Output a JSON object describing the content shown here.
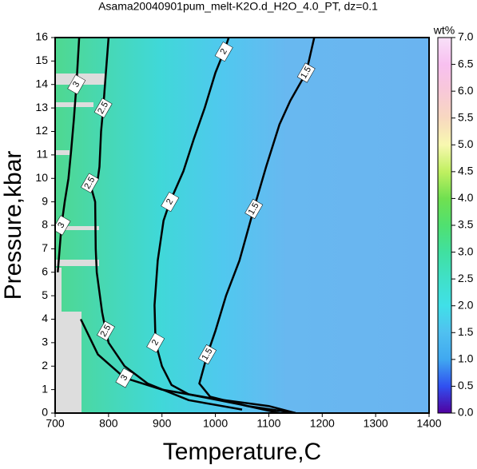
{
  "chart_data": {
    "type": "contour",
    "title": "Asama20040901pum_melt-K2O.d_H2O_4.0_PT, dz=0.1",
    "x_label": "Temperature,C",
    "y_label": "Pressure,kbar",
    "xlim": [
      700,
      1400
    ],
    "ylim": [
      0,
      16
    ],
    "xticks": [
      700,
      800,
      900,
      1000,
      1100,
      1200,
      1300,
      1400
    ],
    "yticks": [
      0,
      1,
      2,
      3,
      4,
      5,
      6,
      7,
      8,
      9,
      10,
      11,
      12,
      13,
      14,
      15,
      16
    ],
    "colorbar": {
      "label": "wt%",
      "zlim": [
        0,
        7
      ],
      "colormap": [
        "#5000a0",
        "#3050f0",
        "#40a8f0",
        "#50c0f0",
        "#40e0e8",
        "#40e0c8",
        "#40e0a0",
        "#50e070",
        "#70e050",
        "#c0f060",
        "#f8f8b0",
        "#f8d8c0",
        "#f8c8d8",
        "#f8c0f0",
        "#f8e0f8"
      ],
      "ticks": [
        {
          "value": 0,
          "label": "0.0"
        },
        {
          "value": 0.5,
          "label": "0.5"
        },
        {
          "value": 1,
          "label": "1.0"
        },
        {
          "value": 1.5,
          "label": "1.5"
        },
        {
          "value": 2,
          "label": "2.0"
        },
        {
          "value": 2.5,
          "label": "2.5"
        },
        {
          "value": 3,
          "label": "3.0"
        },
        {
          "value": 3.5,
          "label": "3.5"
        },
        {
          "value": 4,
          "label": "4.0"
        },
        {
          "value": 4.5,
          "label": "4.5"
        },
        {
          "value": 5,
          "label": "5.0"
        },
        {
          "value": 5.5,
          "label": "5.5"
        },
        {
          "value": 6,
          "label": "6.0"
        },
        {
          "value": 6.5,
          "label": "6.5"
        },
        {
          "value": 7,
          "label": "7.0"
        }
      ]
    },
    "contours": [
      {
        "level": 1.5,
        "color": "#000000",
        "x": [
          1185,
          1170,
          1140,
          1120,
          1095,
          1072,
          1045,
          1020,
          1000,
          985,
          970,
          990,
          1060,
          1150
        ],
        "y": [
          16,
          14.5,
          13.3,
          12.3,
          10.5,
          8.7,
          6.5,
          5,
          3.5,
          2.5,
          1.26,
          0.7,
          0.3,
          0
        ]
      },
      {
        "level": 2,
        "color": "#000000",
        "x": [
          1025,
          1016,
          1000,
          980,
          960,
          940,
          915,
          903,
          892,
          886,
          888,
          900,
          918,
          950,
          1050,
          1120
        ],
        "y": [
          16,
          15.4,
          14.5,
          13,
          11.7,
          10.3,
          9,
          8.2,
          6.5,
          4.6,
          3,
          2,
          1.2,
          0.8,
          0.35,
          0
        ]
      },
      {
        "level": 2.5,
        "color": "#000000",
        "x": [
          800,
          795,
          790,
          786,
          783,
          780,
          765,
          775,
          776,
          778,
          788,
          795,
          800,
          830,
          873,
          950,
          1050
        ],
        "y": [
          16,
          14.5,
          13,
          12,
          10.5,
          10,
          9.8,
          9,
          7,
          6,
          4.3,
          3.5,
          3,
          2,
          1.26,
          0.55,
          0.15
        ]
      },
      {
        "level": 3,
        "color": "#000000",
        "x": [
          745,
          740,
          735,
          730,
          725,
          718,
          712,
          705,
          null,
          748,
          780,
          830,
          900,
          1000,
          1100,
          1150
        ],
        "y": [
          16,
          14,
          12.5,
          11.2,
          10,
          9,
          8,
          6,
          null,
          4,
          2.5,
          1.5,
          1,
          0.6,
          0.3,
          0
        ]
      }
    ]
  }
}
